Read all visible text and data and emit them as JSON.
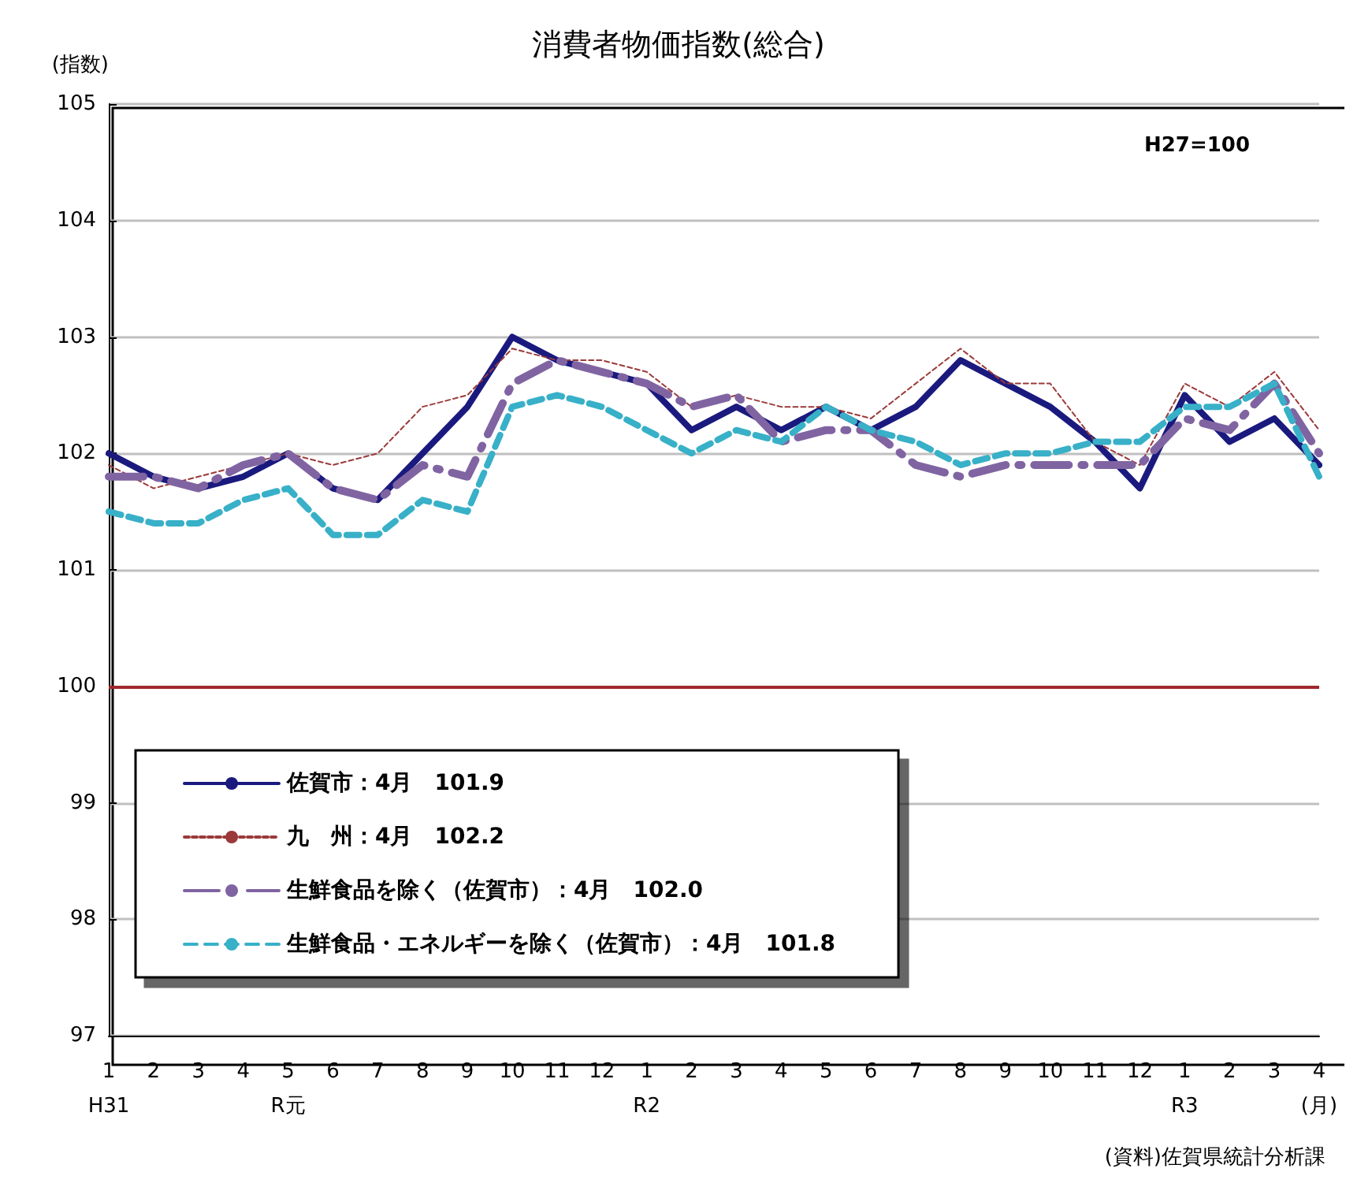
{
  "chart_data": {
    "type": "line",
    "title": "消費者物価指数(総合)",
    "ylabel": "(指数)",
    "annotations": [
      "H27=100",
      "(資料)佐賀県統計分析課"
    ],
    "categories": [
      "1\nH31",
      "2",
      "3",
      "4",
      "5\nR元",
      "6",
      "7",
      "8",
      "9",
      "10",
      "11",
      "12",
      "1\nR2",
      "2",
      "3",
      "4",
      "5",
      "6",
      "7",
      "8",
      "9",
      "10",
      "11",
      "12",
      "1\nR3",
      "2",
      "3",
      "4\n(月)"
    ],
    "series": [
      {
        "name": "佐賀市：4月　101.9",
        "color": "#1a1a7e",
        "line_style": "solid",
        "values": [
          102.0,
          101.8,
          101.7,
          101.8,
          102.0,
          101.7,
          101.6,
          102.0,
          102.4,
          103.0,
          102.8,
          102.7,
          102.6,
          102.2,
          102.4,
          102.2,
          102.4,
          102.2,
          102.4,
          102.8,
          102.6,
          102.4,
          102.1,
          101.7,
          102.5,
          102.1,
          102.3,
          101.9
        ]
      },
      {
        "name": "九　州：4月　102.2",
        "color": "#9b3a3a",
        "line_style": "dotted",
        "values": [
          101.9,
          101.7,
          101.8,
          101.9,
          102.0,
          101.9,
          102.0,
          102.4,
          102.5,
          102.9,
          102.8,
          102.8,
          102.7,
          102.4,
          102.5,
          102.4,
          102.4,
          102.3,
          102.6,
          102.9,
          102.6,
          102.6,
          102.1,
          101.9,
          102.6,
          102.4,
          102.7,
          102.2
        ]
      },
      {
        "name": "生鮮食品を除く（佐賀市）：4月　102.0",
        "color": "#8064a2",
        "line_style": "dashdot",
        "values": [
          101.8,
          101.8,
          101.7,
          101.9,
          102.0,
          101.7,
          101.6,
          101.9,
          101.8,
          102.6,
          102.8,
          102.7,
          102.6,
          102.4,
          102.5,
          102.1,
          102.2,
          102.2,
          101.9,
          101.8,
          101.9,
          101.9,
          101.9,
          101.9,
          102.3,
          102.2,
          102.6,
          102.0
        ]
      },
      {
        "name": "生鮮食品・エネルギーを除く（佐賀市）：4月　101.8",
        "color": "#38b0c8",
        "line_style": "dashed",
        "values": [
          101.5,
          101.4,
          101.4,
          101.6,
          101.7,
          101.3,
          101.3,
          101.6,
          101.5,
          102.4,
          102.5,
          102.4,
          102.2,
          102.0,
          102.2,
          102.1,
          102.4,
          102.2,
          102.1,
          101.9,
          102.0,
          102.0,
          102.1,
          102.1,
          102.4,
          102.4,
          102.6,
          101.8
        ]
      }
    ],
    "ylim": [
      97,
      105
    ],
    "yticks": [
      97,
      98,
      99,
      100,
      101,
      102,
      103,
      104,
      105
    ],
    "grid": "y",
    "legend": "bottom left",
    "marker": "none",
    "ref_lines": [
      {
        "axis": "y",
        "value": 100,
        "color": "#a0282d"
      }
    ]
  }
}
